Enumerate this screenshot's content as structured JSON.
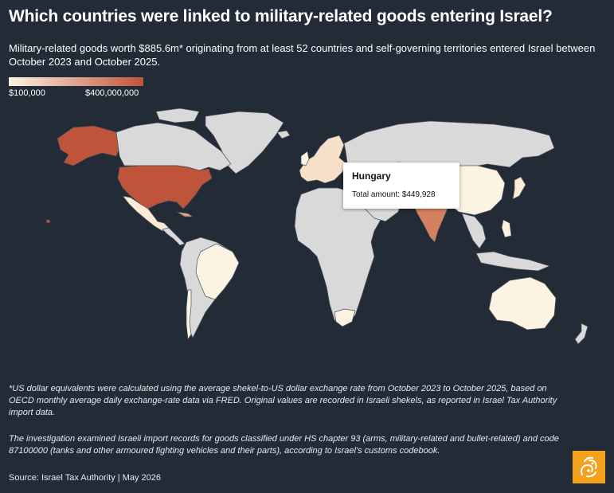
{
  "title": "Which countries were linked to military-related goods entering Israel?",
  "subtitle": "Military-related goods worth $885.6m* originating from at least 52 countries and self-governing territories entered Israel between October 2023 and October 2025.",
  "legend": {
    "min_label": "$100,000",
    "max_label": "$400,000,000",
    "color_low": "#fdf3e3",
    "color_high": "#c0543b"
  },
  "map": {
    "ocean_color": "#232b36",
    "no_data_color": "#d9d9d9",
    "border_color": "#4a4f57"
  },
  "tooltip": {
    "title": "Hungary",
    "amount_text": "Total amount: $449,928"
  },
  "notes": [
    "*US dollar equivalents were calculated using the average shekel-to-US dollar exchange rate from October 2023 to October 2025, based on OECD monthly average daily exchange-rate data via FRED. Original values are recorded in Israeli shekels, as reported in Israel Tax Authority import data.",
    "The investigation examined Israeli import records for goods classified under HS chapter 93 (arms, military-related and bullet-related) and code 87100000 (tanks and other armoured fighting vehicles and their parts), according to Israel's customs codebook."
  ],
  "source": "Source: Israel Tax Authority | May 2026",
  "logo": {
    "name": "Al Jazeera",
    "color": "#f4a21d"
  }
}
